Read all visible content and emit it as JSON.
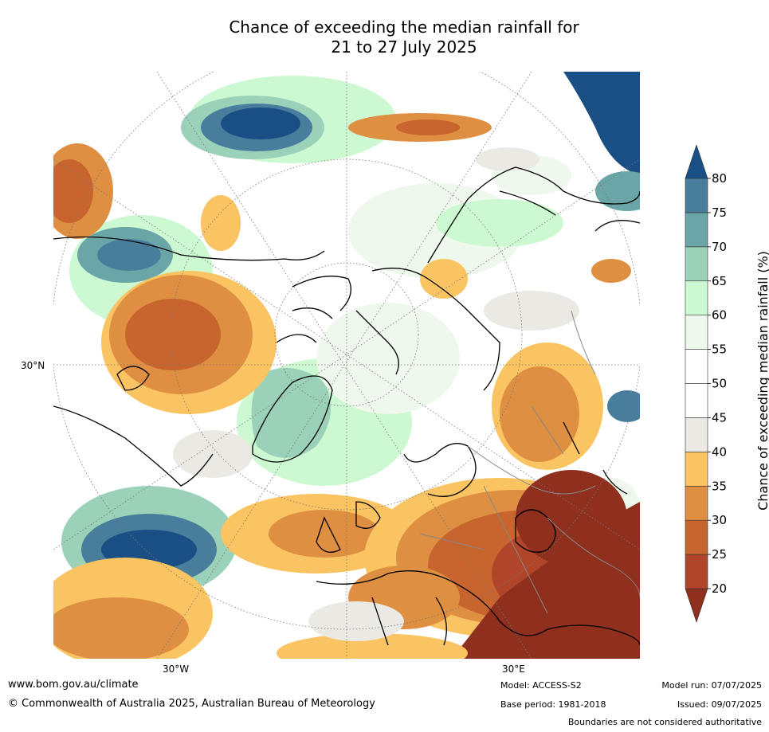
{
  "title": {
    "line1": "Chance of exceeding the median rainfall for",
    "line2": "21 to 27 July 2025"
  },
  "axes": {
    "lat_label": "30°N",
    "lon_west_label": "30°W",
    "lon_east_label": "30°E"
  },
  "colorbar": {
    "label": "Chance of exceeding median rainfall (%)",
    "ticks": [
      "20",
      "25",
      "30",
      "35",
      "40",
      "45",
      "50",
      "55",
      "60",
      "65",
      "70",
      "75",
      "80"
    ],
    "colors": [
      "#8f2f1d",
      "#b0452a",
      "#c8652f",
      "#df8f42",
      "#fbc462",
      "#ebe9e4",
      "#ffffff",
      "#ffffff",
      "#eef8ec",
      "#cdf9d2",
      "#9bd1b8",
      "#6aa6a8",
      "#487e9b",
      "#1a4f86"
    ]
  },
  "footer": {
    "website": "www.bom.gov.au/climate",
    "copyright": "© Commonwealth of Australia 2025, Australian Bureau of Meteorology",
    "model": "Model: ACCESS-S2",
    "base_period": "Base period: 1981-2018",
    "model_run": "Model run: 07/07/2025",
    "issued": "Issued: 09/07/2025",
    "disclaimer": "Boundaries are not considered authoritative"
  }
}
